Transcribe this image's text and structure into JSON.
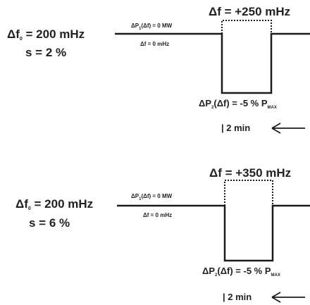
{
  "panels": [
    {
      "df0_symbol": "Δf",
      "df0_sub": "0",
      "df0_value": " = 200 mHz",
      "s_label": "s = 2 %",
      "dp1_prefix": "ΔP",
      "dp1_sub": "1",
      "dp1_suffix": "(Δf) = 0 MW",
      "df_zero": "Δf = 0 mHz",
      "df_step": "Δf = +250 mHz",
      "dp2_prefix": "ΔP",
      "dp2_sub": "2",
      "dp2_suffix": "(Δf) = -5 % P",
      "pmax_sub": "MAX",
      "duration": "| 2 min"
    },
    {
      "df0_symbol": "Δf",
      "df0_sub": "0",
      "df0_value": " = 200 mHz",
      "s_label": "s = 6 %",
      "dp1_prefix": "ΔP",
      "dp1_sub": "1",
      "dp1_suffix": "(Δf) = 0 MW",
      "df_zero": "Δf = 0 mHz",
      "df_step": "Δf = +350 mHz",
      "dp2_prefix": "ΔP",
      "dp2_sub": "2",
      "dp2_suffix": "(Δf) = -5 % P",
      "pmax_sub": "MAX",
      "duration": "| 2 min"
    }
  ],
  "colors": {
    "line": "#1a1a1a",
    "text": "#222222",
    "background": "#ffffff"
  }
}
